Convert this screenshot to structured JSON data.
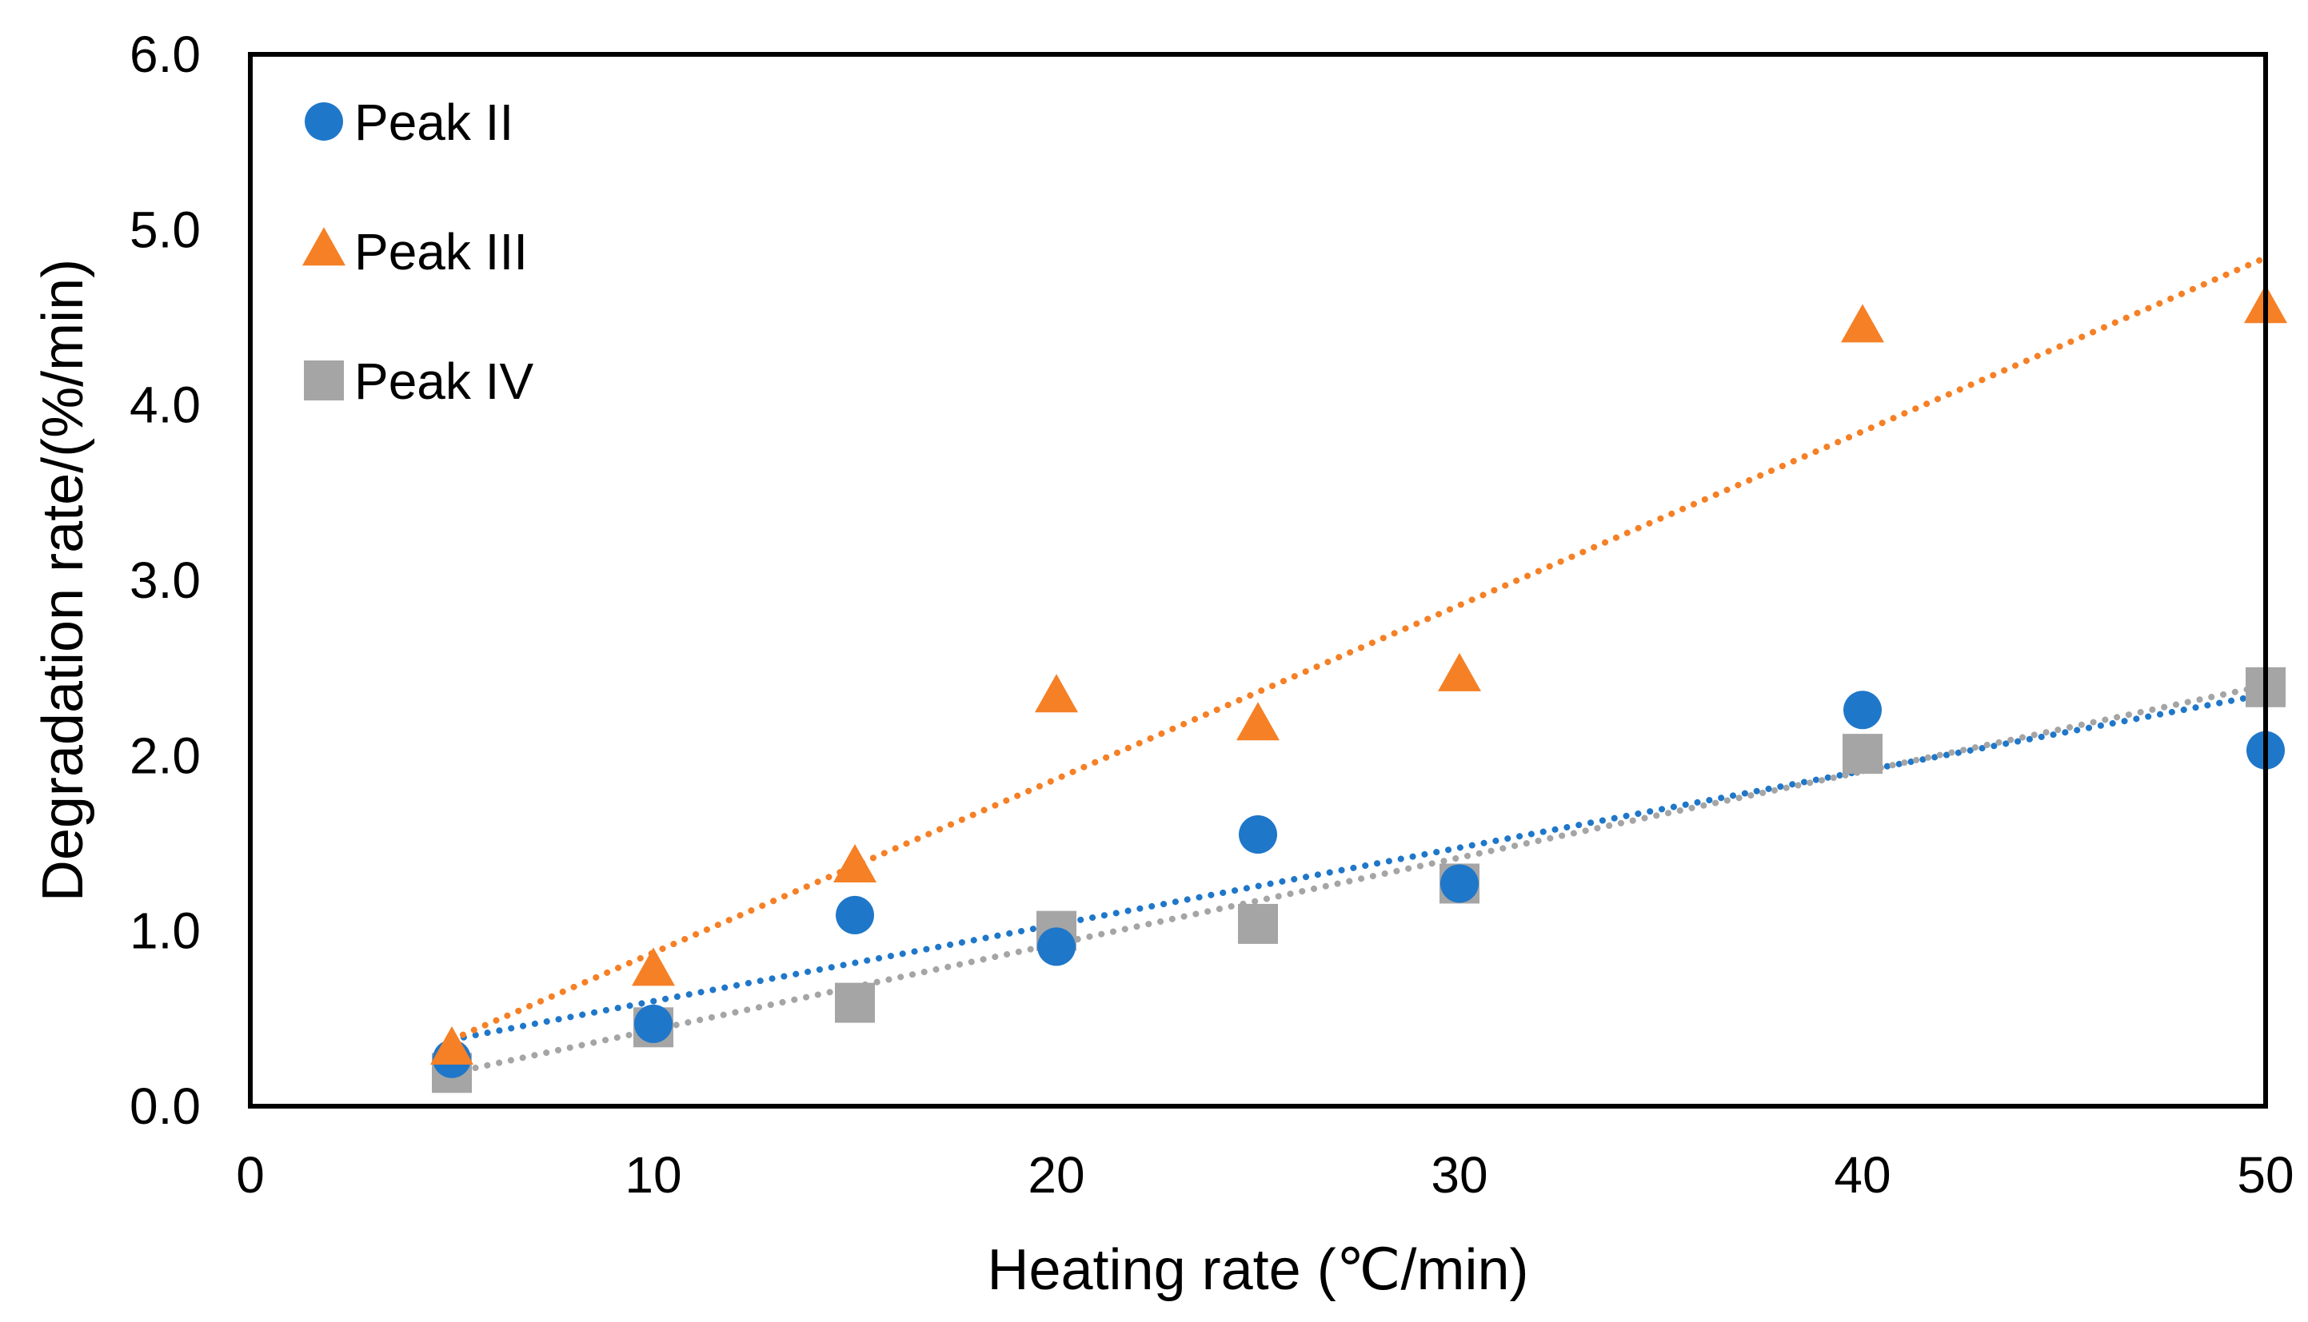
{
  "chart_data": {
    "type": "scatter",
    "title": "",
    "xlabel": "Heating rate (℃/min)",
    "ylabel": "Degradation rate/(%/min)",
    "xlim": [
      0,
      50
    ],
    "ylim": [
      0,
      6
    ],
    "x_ticks": [
      "0",
      "10",
      "20",
      "30",
      "40",
      "50"
    ],
    "y_ticks": [
      "0.0",
      "1.0",
      "2.0",
      "3.0",
      "4.0",
      "5.0",
      "6.0"
    ],
    "grid": false,
    "legend_position": "top-left",
    "series": [
      {
        "name": "Peak II",
        "marker": "circle",
        "color": "#1f77c9",
        "x": [
          5,
          10,
          15,
          20,
          25,
          30,
          40,
          50
        ],
        "y": [
          0.27,
          0.47,
          1.09,
          0.91,
          1.55,
          1.27,
          2.26,
          2.03
        ],
        "trendline": {
          "type": "linear",
          "style": "dotted",
          "from": [
            5,
            0.38
          ],
          "to": [
            50,
            2.35
          ]
        }
      },
      {
        "name": "Peak III",
        "marker": "triangle",
        "color": "#f58026",
        "x": [
          5,
          10,
          15,
          20,
          25,
          30,
          40,
          50
        ],
        "y": [
          0.32,
          0.77,
          1.36,
          2.33,
          2.17,
          2.45,
          4.44,
          4.55
        ],
        "trendline": {
          "type": "linear",
          "style": "dotted",
          "from": [
            5,
            0.38
          ],
          "to": [
            50,
            4.84
          ]
        }
      },
      {
        "name": "Peak IV",
        "marker": "square",
        "color": "#a5a5a5",
        "x": [
          5,
          10,
          15,
          20,
          25,
          30,
          40,
          50
        ],
        "y": [
          0.19,
          0.45,
          0.59,
          1.0,
          1.04,
          1.27,
          2.01,
          2.39
        ],
        "trendline": {
          "type": "linear",
          "style": "dotted",
          "from": [
            5,
            0.19
          ],
          "to": [
            50,
            2.4
          ]
        }
      }
    ]
  }
}
